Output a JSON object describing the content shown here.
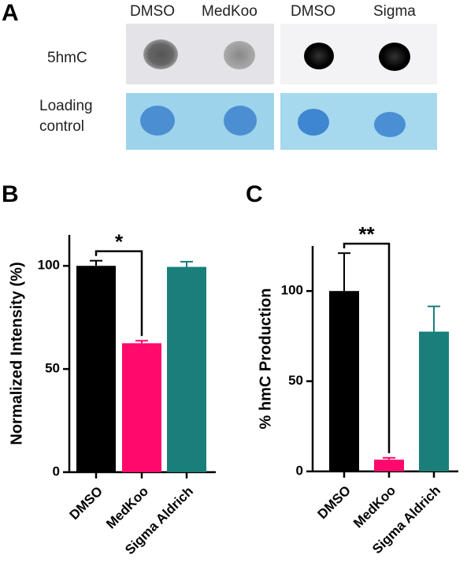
{
  "panel_a": {
    "label": "A",
    "columns": [
      "DMSO",
      "MedKoo",
      "DMSO",
      "Sigma"
    ],
    "rows": [
      "5hmC",
      "Loading control"
    ]
  },
  "chart_data": [
    {
      "type": "bar",
      "panel": "B",
      "y_label": "Normalized Intensity (%)",
      "categories": [
        "DMSO",
        "MedKoo",
        "Sigma Aldrich"
      ],
      "values": [
        100,
        62.5,
        99.5
      ],
      "errors": [
        2.5,
        1.2,
        2.5
      ],
      "colors": [
        "#000000",
        "#ff0a6c",
        "#1a7f7b"
      ],
      "ylim": [
        0,
        115
      ],
      "yticks": [
        0,
        50,
        100
      ],
      "significance": "*"
    },
    {
      "type": "bar",
      "panel": "C",
      "y_label": "% hmC Production",
      "categories": [
        "DMSO",
        "MedKoo",
        "Sigma Aldrich"
      ],
      "values": [
        100,
        6.5,
        77.5
      ],
      "errors": [
        21,
        1,
        14
      ],
      "colors": [
        "#000000",
        "#ff0a6c",
        "#1a7f7b"
      ],
      "ylim": [
        0,
        125
      ],
      "yticks": [
        0,
        50,
        100
      ],
      "significance": "**"
    }
  ]
}
